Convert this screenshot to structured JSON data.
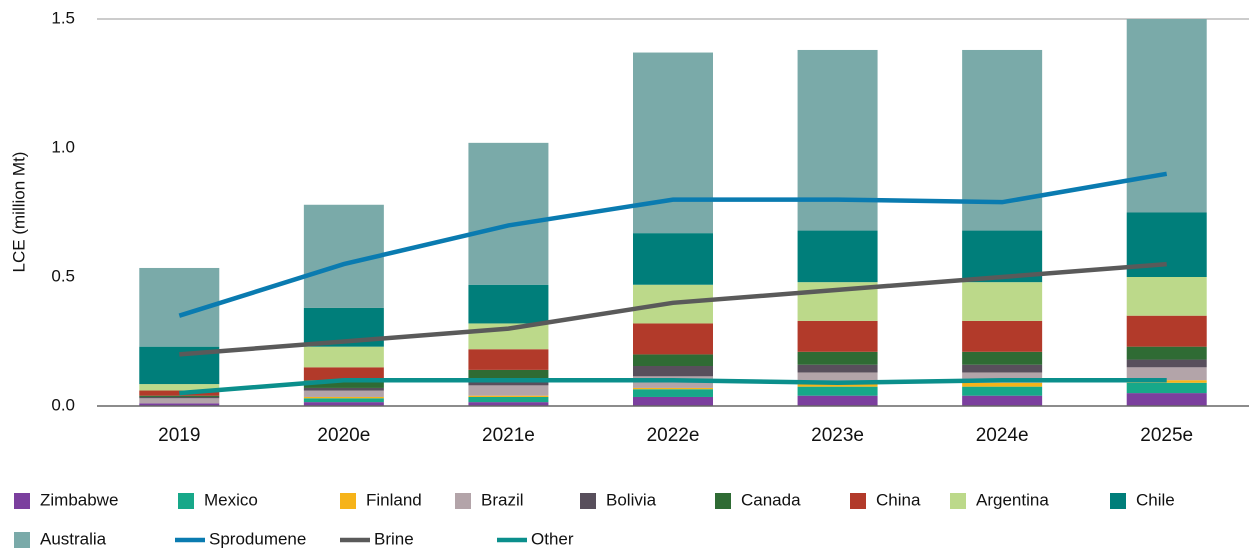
{
  "chart_data": {
    "type": "bar",
    "stacked": true,
    "ylabel": "LCE (million Mt)",
    "categories": [
      "2019",
      "2020e",
      "2021e",
      "2022e",
      "2023e",
      "2024e",
      "2025e"
    ],
    "ylim": [
      0,
      1.5
    ],
    "yticks": [
      {
        "value": 0,
        "label": "0.0"
      },
      0.5,
      {
        "value": 1,
        "label": "1.0"
      },
      {
        "value": 1.5,
        "label": "1.5"
      }
    ],
    "grid": false,
    "legend": "bottom",
    "series": [
      {
        "name": "Zimbabwe",
        "type": "bar",
        "color": "#7b3f9e",
        "values": [
          0.01,
          0.015,
          0.015,
          0.035,
          0.04,
          0.04,
          0.05
        ]
      },
      {
        "name": "Mexico",
        "type": "bar",
        "color": "#17a889",
        "values": [
          0,
          0.015,
          0.02,
          0.03,
          0.035,
          0.035,
          0.04
        ]
      },
      {
        "name": "Finland",
        "type": "bar",
        "color": "#f6b319",
        "values": [
          0,
          0.005,
          0.005,
          0.005,
          0.015,
          0.015,
          0.01
        ]
      },
      {
        "name": "Brazil",
        "type": "bar",
        "color": "#b3a4a9",
        "values": [
          0.02,
          0.025,
          0.04,
          0.045,
          0.04,
          0.04,
          0.05
        ]
      },
      {
        "name": "Bolivia",
        "type": "bar",
        "color": "#584f5c",
        "values": [
          0.005,
          0.01,
          0.02,
          0.04,
          0.03,
          0.03,
          0.03
        ]
      },
      {
        "name": "Canada",
        "type": "bar",
        "color": "#2f6b34",
        "values": [
          0.005,
          0.03,
          0.04,
          0.045,
          0.05,
          0.05,
          0.05
        ]
      },
      {
        "name": "China",
        "type": "bar",
        "color": "#b23a2a",
        "values": [
          0.02,
          0.05,
          0.08,
          0.12,
          0.12,
          0.12,
          0.12
        ]
      },
      {
        "name": "Argentina",
        "type": "bar",
        "color": "#bcd98a",
        "values": [
          0.025,
          0.08,
          0.1,
          0.15,
          0.15,
          0.15,
          0.15
        ]
      },
      {
        "name": "Chile",
        "type": "bar",
        "color": "#007e7a",
        "values": [
          0.145,
          0.15,
          0.15,
          0.2,
          0.2,
          0.2,
          0.25
        ]
      },
      {
        "name": "Australia",
        "type": "bar",
        "color": "#7aaaa9",
        "values": [
          0.305,
          0.4,
          0.55,
          0.7,
          0.7,
          0.7,
          0.75
        ]
      },
      {
        "name": "Sprodumene",
        "type": "line",
        "color": "#0a7bb0",
        "values": [
          0.35,
          0.55,
          0.7,
          0.8,
          0.8,
          0.79,
          0.9
        ]
      },
      {
        "name": "Brine",
        "type": "line",
        "color": "#5a5a5a",
        "values": [
          0.2,
          0.25,
          0.3,
          0.4,
          0.45,
          0.5,
          0.55
        ]
      },
      {
        "name": "Other",
        "type": "line",
        "color": "#0b8f8c",
        "values": [
          0.05,
          0.1,
          0.1,
          0.1,
          0.09,
          0.1,
          0.1
        ]
      }
    ]
  }
}
